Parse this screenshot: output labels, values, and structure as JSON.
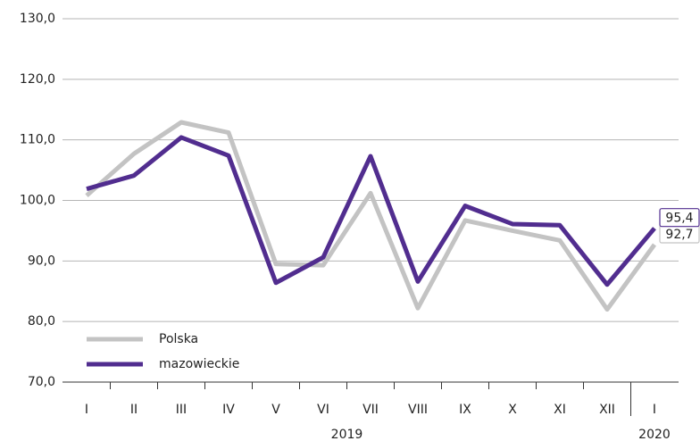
{
  "chart_data": {
    "type": "line",
    "categories": [
      "I",
      "II",
      "III",
      "IV",
      "V",
      "VI",
      "VII",
      "VIII",
      "IX",
      "X",
      "XI",
      "XII",
      "I"
    ],
    "periods": [
      {
        "label": "2019",
        "count": 12
      },
      {
        "label": "2020",
        "count": 1
      }
    ],
    "series": [
      {
        "name": "Polska",
        "color": "#c3c3c3",
        "values": [
          100.8,
          107.7,
          112.9,
          111.2,
          89.5,
          89.3,
          101.2,
          82.2,
          96.7,
          95.0,
          93.4,
          82.0,
          92.7
        ],
        "value_labels": [
          null,
          null,
          null,
          null,
          null,
          null,
          null,
          null,
          null,
          null,
          null,
          null,
          "92,7"
        ]
      },
      {
        "name": "mazowieckie",
        "color": "#512d8f",
        "values": [
          101.9,
          104.1,
          110.4,
          107.4,
          86.4,
          90.6,
          107.3,
          86.6,
          99.1,
          96.1,
          95.9,
          86.1,
          95.4
        ],
        "value_labels": [
          null,
          null,
          null,
          null,
          null,
          null,
          null,
          null,
          null,
          null,
          null,
          null,
          "95,4"
        ]
      }
    ],
    "ylim": [
      70,
      130
    ],
    "yticks": [
      {
        "value": 70,
        "label": "70,0"
      },
      {
        "value": 80,
        "label": "80,0"
      },
      {
        "value": 90,
        "label": "90,0"
      },
      {
        "value": 100,
        "label": "100,0"
      },
      {
        "value": 110,
        "label": "110,0"
      },
      {
        "value": 120,
        "label": "120,0"
      },
      {
        "value": 130,
        "label": "130,0"
      }
    ],
    "grid": true,
    "legend": "lower left"
  }
}
